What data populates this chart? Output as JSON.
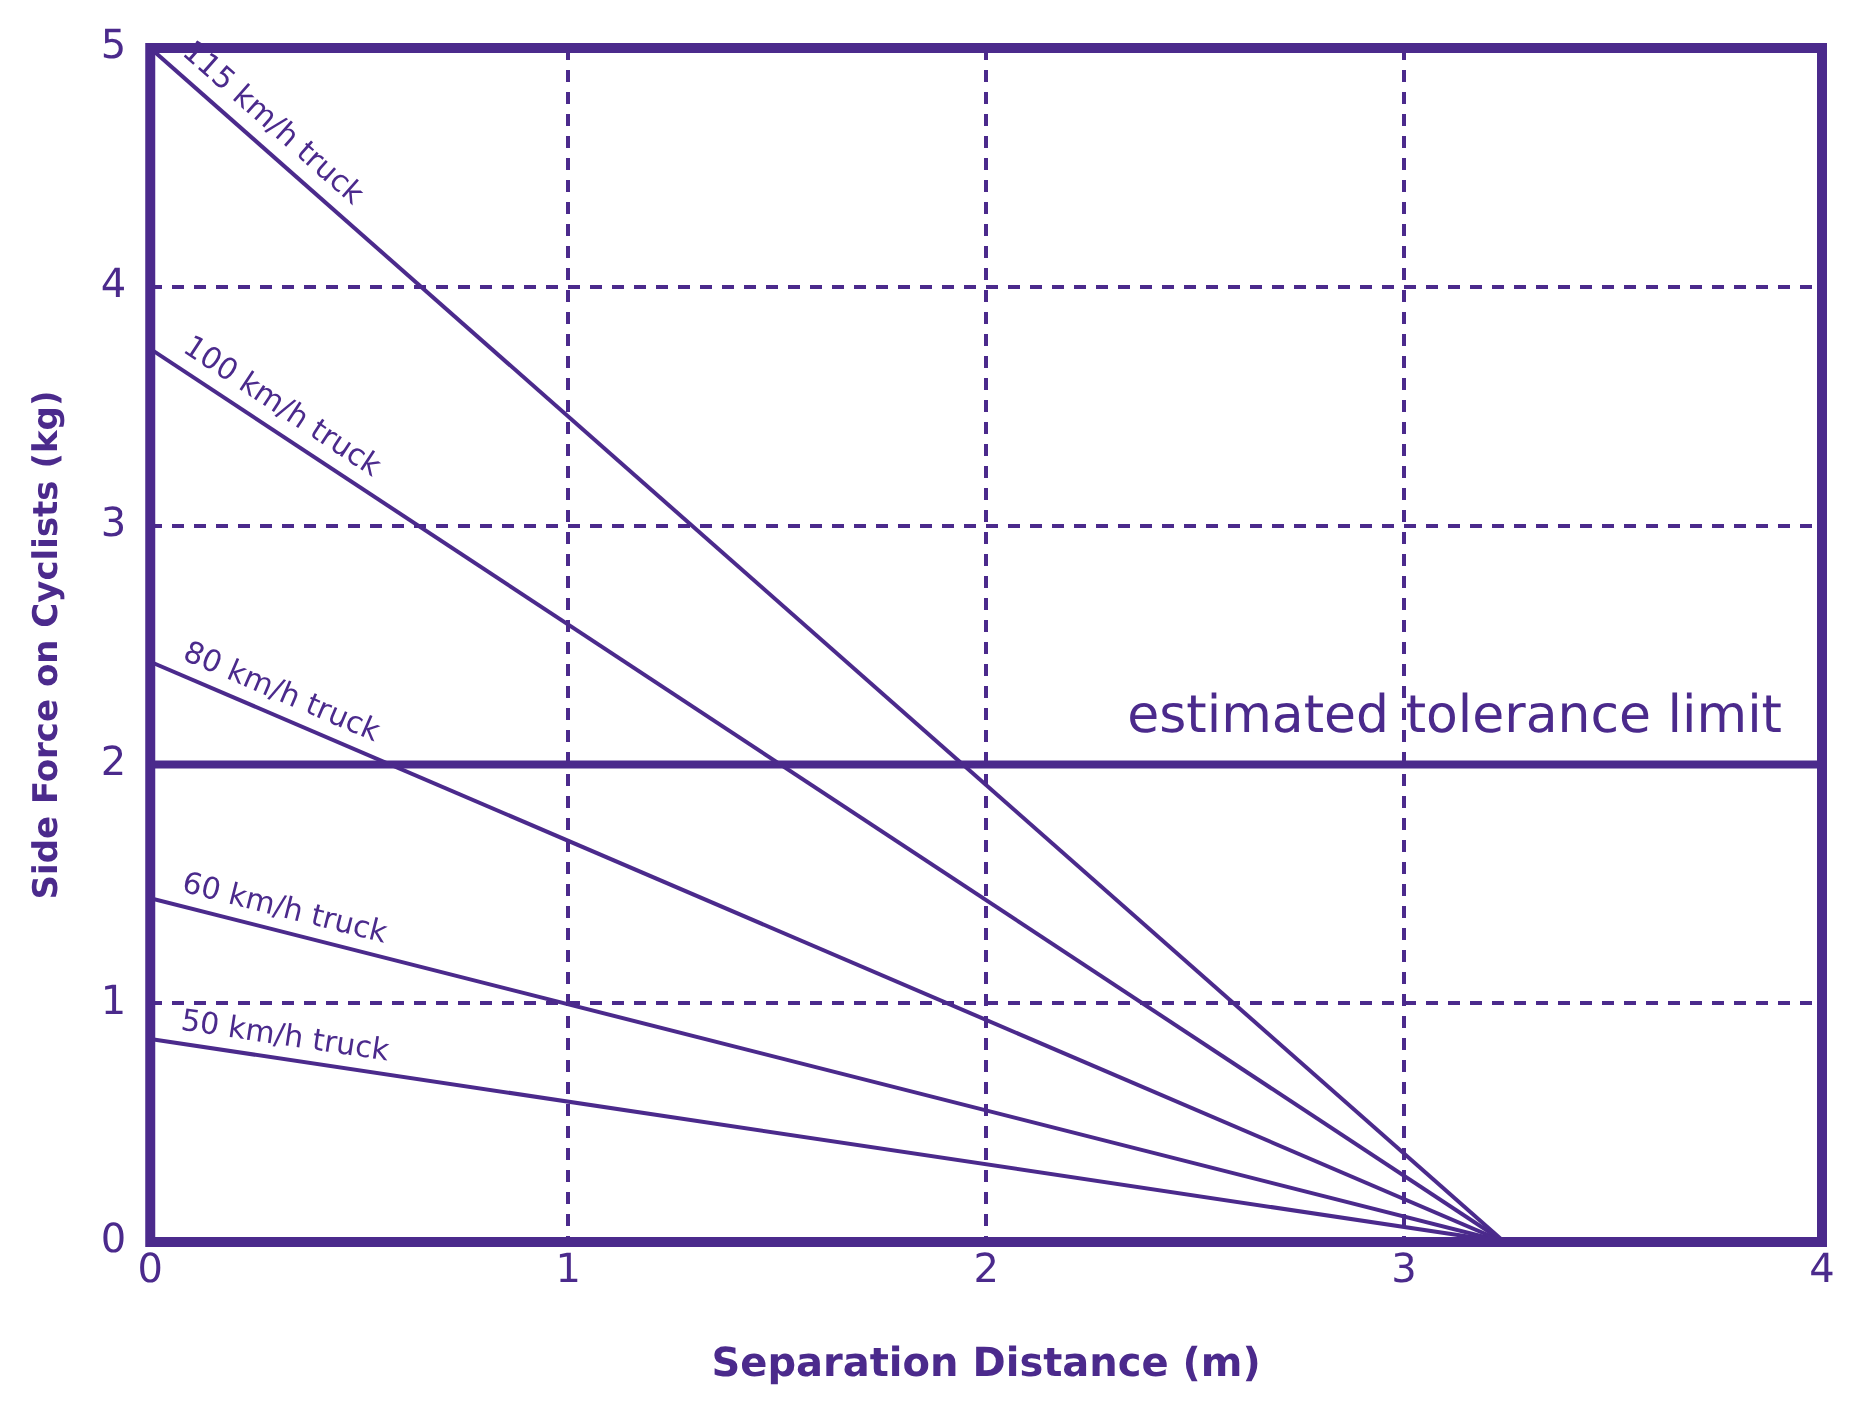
{
  "chart_data": {
    "type": "line",
    "xlabel": "Separation Distance (m)",
    "ylabel": "Side Force on Cyclists (kg)",
    "xlim": [
      0,
      4
    ],
    "ylim": [
      0,
      5
    ],
    "xticks": [
      0,
      1,
      2,
      3,
      4
    ],
    "yticks": [
      0,
      1,
      2,
      3,
      4,
      5
    ],
    "grid": true,
    "legend": false,
    "marker": "none",
    "line_style": "solid",
    "x": [
      0,
      3.24
    ],
    "series": [
      {
        "name": "115 km/h truck",
        "color": "#4b2a8c",
        "values": [
          5,
          0
        ]
      },
      {
        "name": "100 km/h truck",
        "color": "#4b2a8c",
        "values": [
          3.74,
          0
        ]
      },
      {
        "name": "80 km/h truck",
        "color": "#4b2a8c",
        "values": [
          2.43,
          0
        ]
      },
      {
        "name": "60 km/h truck",
        "color": "#4b2a8c",
        "values": [
          1.44,
          0
        ]
      },
      {
        "name": "50 km/h truck",
        "color": "#4b2a8c",
        "values": [
          0.85,
          0
        ]
      }
    ],
    "ref_lines": [
      {
        "axis": "y",
        "value": 2,
        "label": "estimated tolerance limit",
        "color": "#4b2a8c",
        "line_style": "solid"
      }
    ]
  }
}
